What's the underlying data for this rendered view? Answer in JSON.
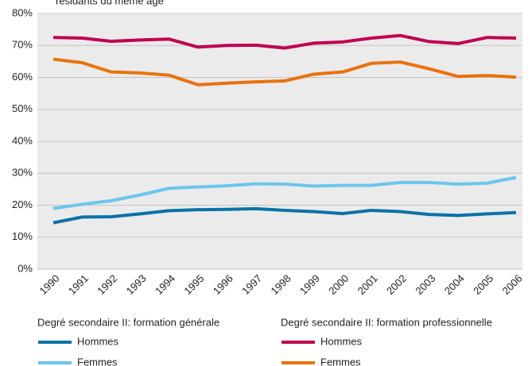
{
  "chart_data": {
    "type": "line",
    "subtitle": "résidants du même âge",
    "categories": [
      "1990",
      "1991",
      "1992",
      "1993",
      "1994",
      "1995",
      "1996",
      "1997",
      "1998",
      "1999",
      "2000",
      "2001",
      "2002",
      "2003",
      "2004",
      "2005",
      "2006"
    ],
    "ylim": [
      0,
      80
    ],
    "yticks": [
      {
        "value": 0,
        "label": "0%"
      },
      {
        "value": 10,
        "label": "10%"
      },
      {
        "value": 20,
        "label": "20%"
      },
      {
        "value": 30,
        "label": "30%"
      },
      {
        "value": 40,
        "label": "40%"
      },
      {
        "value": 50,
        "label": "50%"
      },
      {
        "value": 60,
        "label": "60%"
      },
      {
        "value": 70,
        "label": "70%"
      },
      {
        "value": 80,
        "label": "80%"
      }
    ],
    "grid": true,
    "legend_groups": [
      "Degré secondaire II: formation générale",
      "Degré secondaire II: formation professionnelle"
    ],
    "series": [
      {
        "name": "Hommes",
        "color": "#0a72a8",
        "values": [
          14.5,
          16.3,
          16.4,
          17.3,
          18.3,
          18.6,
          18.7,
          18.9,
          18.4,
          18,
          17.4,
          18.4,
          18,
          17.1,
          16.8,
          17.3,
          17.7
        ]
      },
      {
        "name": "Femmes",
        "color": "#6cc5ec",
        "values": [
          19,
          20.3,
          21.4,
          23.2,
          25.3,
          25.7,
          26.1,
          26.7,
          26.6,
          26,
          26.2,
          26.2,
          27.1,
          27.1,
          26.6,
          26.9,
          28.7
        ]
      },
      {
        "name": "Hommes",
        "color": "#c0004f",
        "values": [
          72.5,
          72.3,
          71.3,
          71.7,
          72,
          69.5,
          70,
          70.1,
          69.2,
          70.7,
          71.1,
          72.3,
          73.1,
          71.2,
          70.6,
          72.5,
          72.3
        ]
      },
      {
        "name": "Femmes",
        "color": "#e8720c",
        "values": [
          65.7,
          64.6,
          61.7,
          61.4,
          60.7,
          57.7,
          58.2,
          58.6,
          58.9,
          61,
          61.7,
          64.4,
          64.8,
          62.7,
          60.3,
          60.6,
          60.1
        ]
      }
    ]
  }
}
